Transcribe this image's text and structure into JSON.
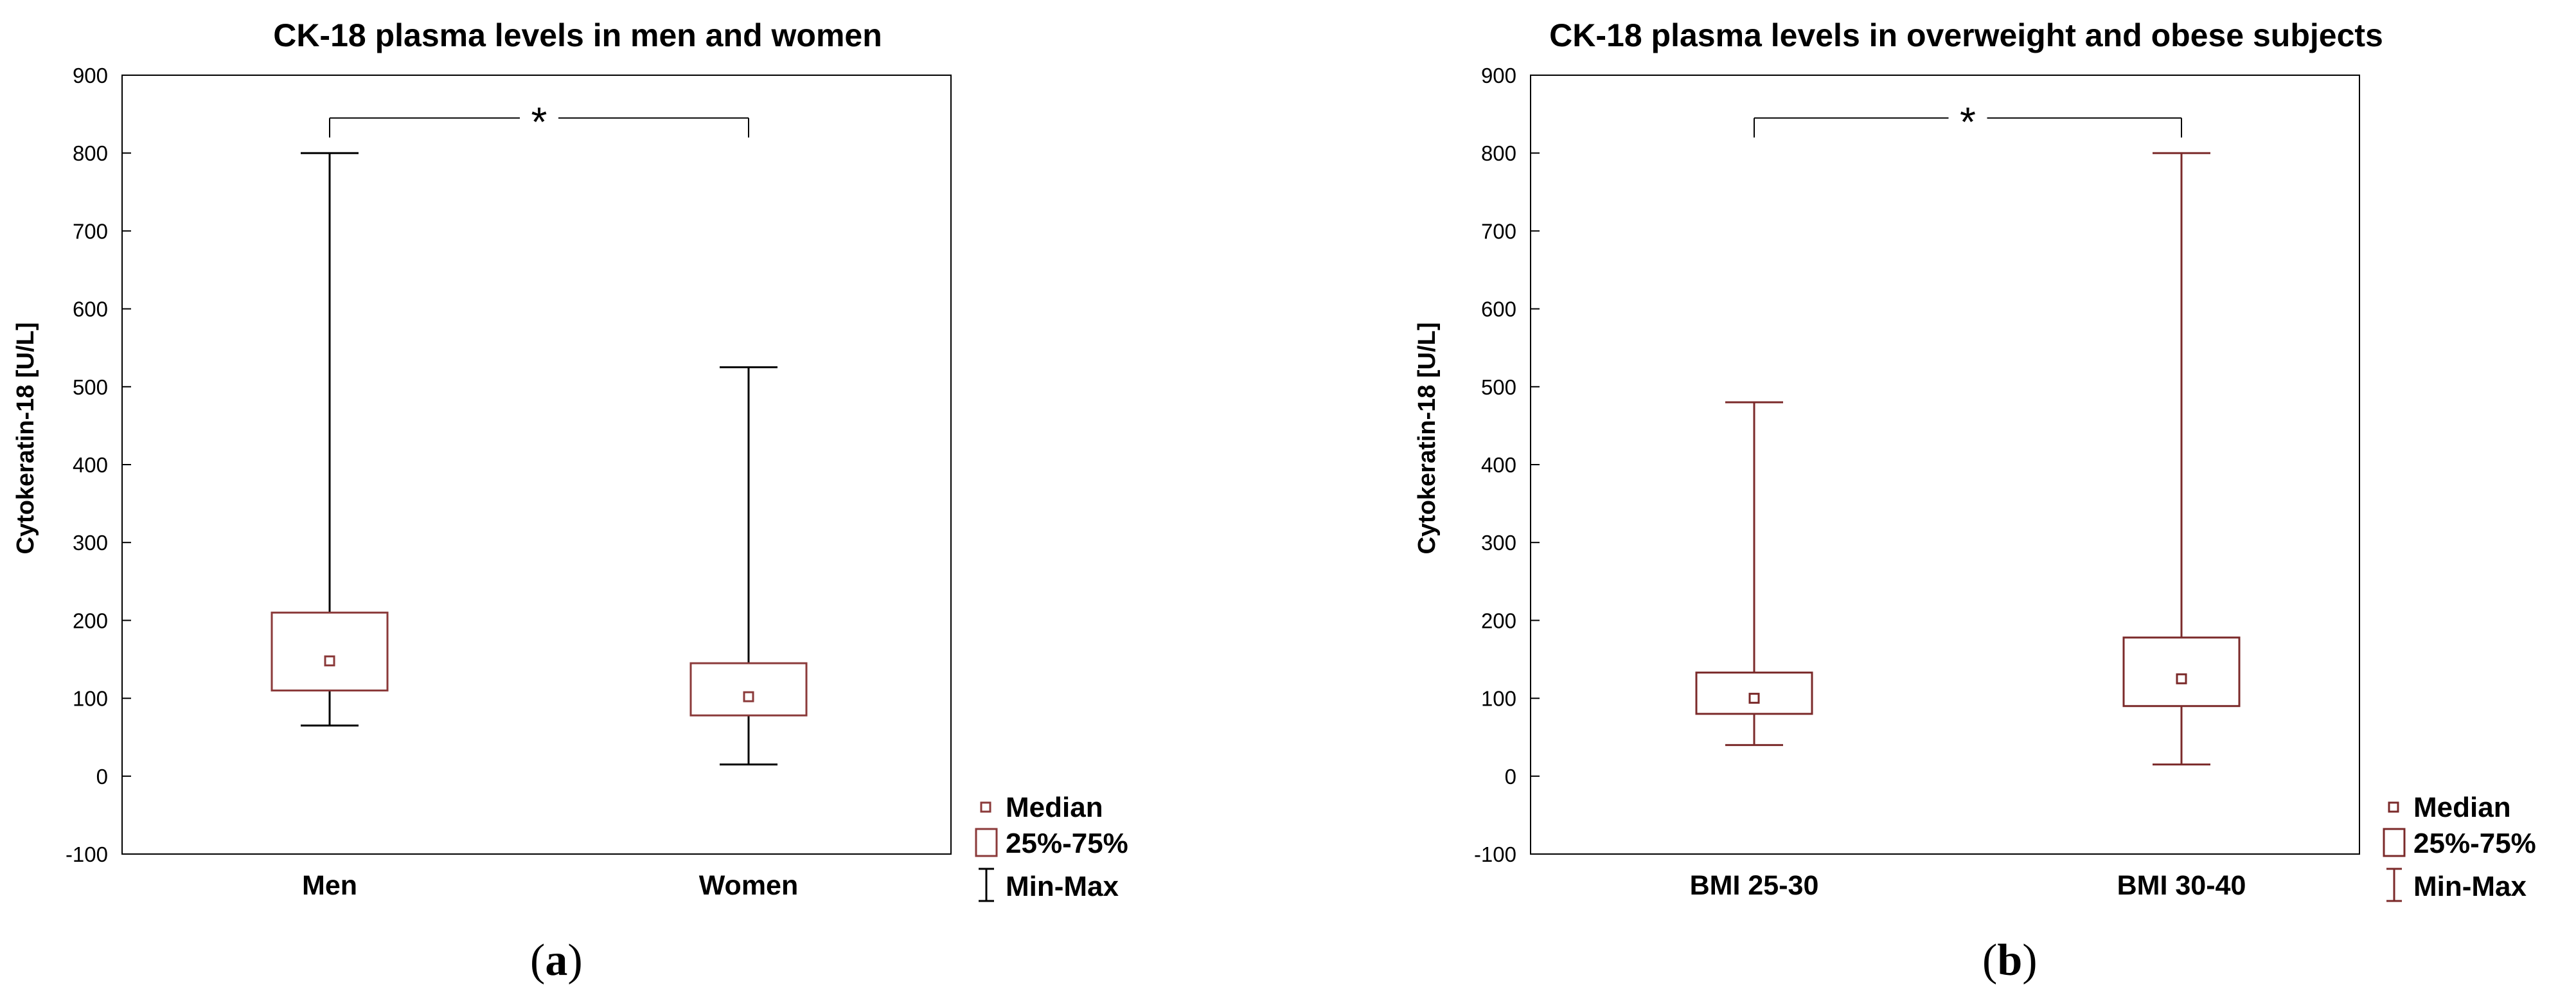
{
  "colors": {
    "panel_a_box": "#8b3a3a",
    "panel_a_whisker": "#000000",
    "panel_b_box": "#7b2a2a",
    "panel_b_whisker": "#7b2a2a",
    "axis": "#000000"
  },
  "chart_data": [
    {
      "type": "box",
      "panel_label": "a",
      "title": "CK-18 plasma levels in men and women",
      "xlabel": "",
      "ylabel": "Cytokeratin-18 [U/L]",
      "ylim": [
        -100,
        900
      ],
      "yticks": [
        "900",
        "800",
        "700",
        "600",
        "500",
        "400",
        "300",
        "200",
        "100",
        "0",
        "-100"
      ],
      "categories": [
        "Men",
        "Women"
      ],
      "series": [
        {
          "name": "Men",
          "min": 65,
          "q1": 110,
          "median": 148,
          "q3": 210,
          "max": 800
        },
        {
          "name": "Women",
          "min": 15,
          "q1": 78,
          "median": 102,
          "q3": 145,
          "max": 525
        }
      ],
      "significance": {
        "symbol": "*",
        "between": [
          "Men",
          "Women"
        ],
        "level": 845
      },
      "legend": {
        "position": "bottom-right",
        "entries": [
          "Median",
          "25%-75%",
          "Min-Max"
        ]
      }
    },
    {
      "type": "box",
      "panel_label": "b",
      "title": "CK-18 plasma levels in overweight and obese subjects",
      "xlabel": "",
      "ylabel": "Cytokeratin-18 [U/L]",
      "ylim": [
        -100,
        900
      ],
      "yticks": [
        "900",
        "800",
        "700",
        "600",
        "500",
        "400",
        "300",
        "200",
        "100",
        "0",
        "-100"
      ],
      "categories": [
        "BMI 25-30",
        "BMI 30-40"
      ],
      "series": [
        {
          "name": "BMI 25-30",
          "min": 40,
          "q1": 80,
          "median": 100,
          "q3": 133,
          "max": 480
        },
        {
          "name": "BMI 30-40",
          "min": 15,
          "q1": 90,
          "median": 125,
          "q3": 178,
          "max": 800
        }
      ],
      "significance": {
        "symbol": "*",
        "between": [
          "BMI 25-30",
          "BMI 30-40"
        ],
        "level": 845
      },
      "legend": {
        "position": "bottom-right",
        "entries": [
          "Median",
          "25%-75%",
          "Min-Max"
        ]
      }
    }
  ]
}
